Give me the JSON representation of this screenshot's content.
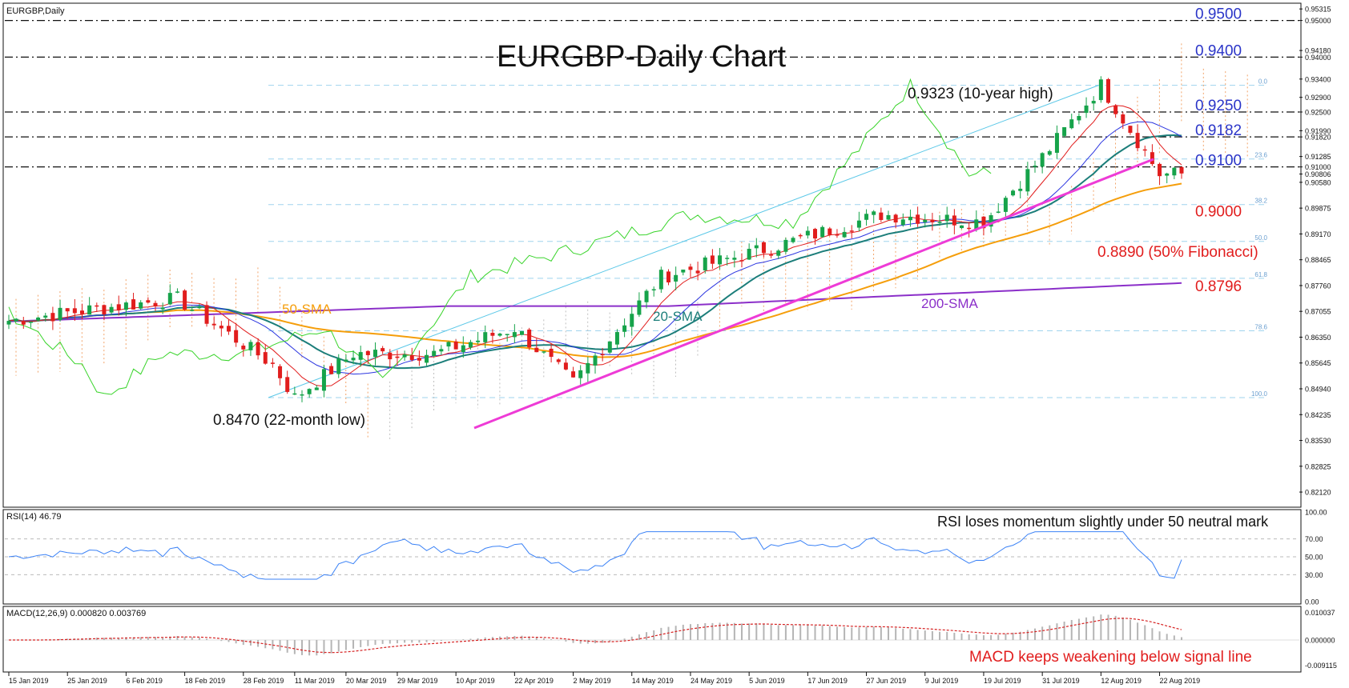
{
  "symbol_label": "EURGBP,Daily",
  "title": "EURGBP-Daily Chart",
  "colors": {
    "bull": "#16a34a",
    "bear": "#e11d1d",
    "sma20": "#1c7e7a",
    "sma50": "#f59e0b",
    "sma200": "#8b2fc9",
    "trend": "#ee3bd6",
    "tenkan": "#e11d1d",
    "kijun": "#2b35e0",
    "chikou": "#38d42a",
    "cloud": "#f2a46a",
    "cloud_gray": "#bfbfbf",
    "channel": "#5bc8e8",
    "rsi": "#3b82f6",
    "macd_hist": "#b5b5b5",
    "macd_signal": "#d62222",
    "label_blue": "#2b35c8",
    "label_red": "#e11d1d"
  },
  "date_axis": [
    "15 Jan 2019",
    "25 Jan 2019",
    "6 Feb 2019",
    "18 Feb 2019",
    "28 Feb 2019",
    "11 Mar 2019",
    "20 Mar 2019",
    "29 Mar 2019",
    "10 Apr 2019",
    "22 Apr 2019",
    "2 May 2019",
    "14 May 2019",
    "24 May 2019",
    "5 Jun 2019",
    "17 Jun 2019",
    "27 Jun 2019",
    "9 Jul 2019",
    "19 Jul 2019",
    "31 Jul 2019",
    "12 Aug 2019",
    "22 Aug 2019"
  ],
  "price_axis": [
    "0.95315",
    "0.95000",
    "0.94180",
    "0.94000",
    "0.93400",
    "0.92900",
    "0.92500",
    "0.91990",
    "0.91820",
    "0.91285",
    "0.91000",
    "0.90806",
    "0.90580",
    "0.89875",
    "0.89170",
    "0.88465",
    "0.87760",
    "0.87055",
    "0.86350",
    "0.85645",
    "0.84940",
    "0.84235",
    "0.83530",
    "0.82825",
    "0.82120"
  ],
  "levels": [
    {
      "price": "0.9500",
      "value": 0.95,
      "color": "#2b35c8"
    },
    {
      "price": "0.9400",
      "value": 0.94,
      "color": "#2b35c8"
    },
    {
      "price": "0.9250",
      "value": 0.925,
      "color": "#2b35c8"
    },
    {
      "price": "0.9182",
      "value": 0.9182,
      "color": "#2b35c8"
    },
    {
      "price": "0.9100",
      "value": 0.91,
      "color": "#2b35c8"
    },
    {
      "price": "0.9000",
      "value": 0.9,
      "color": "#e11d1d"
    },
    {
      "price": "0.8890 (50% Fibonacci)",
      "value": 0.889,
      "color": "#e11d1d"
    },
    {
      "price": "0.8796",
      "value": 0.8796,
      "color": "#e11d1d"
    }
  ],
  "fib_labels": [
    "0.0",
    "23.6",
    "38.2",
    "50.0",
    "61.8",
    "78.6",
    "100.0"
  ],
  "annotations": {
    "high": "0.9323 (10-year high)",
    "low": "0.8470 (22-month low)",
    "sma50": "50-SMA",
    "sma20": "20-SMA",
    "sma200": "200-SMA"
  },
  "rsi": {
    "header": "RSI(14) 46.79",
    "note": "RSI loses momentum slightly under 50 neutral mark",
    "axis": [
      "100.00",
      "70.00",
      "50.00",
      "30.00",
      "0.00"
    ]
  },
  "macd": {
    "header": "MACD(12,26,9) 0.000820 0.003769",
    "note": "MACD keeps weakening below signal line",
    "axis": [
      "0.010037",
      "0.000000",
      "-0.009115"
    ]
  },
  "chart_data": {
    "type": "candlestick",
    "title": "EURGBP-Daily Chart",
    "symbol": "EURGBP, Daily",
    "x_range": [
      "2019-01-15",
      "2019-08-27"
    ],
    "ylim": [
      0.8175,
      0.9545
    ],
    "anchors": [
      {
        "date": "2019-01-15",
        "close": 0.868
      },
      {
        "date": "2019-01-30",
        "close": 0.871
      },
      {
        "date": "2019-02-15",
        "close": 0.874
      },
      {
        "date": "2019-03-06",
        "close": 0.856
      },
      {
        "date": "2019-03-11",
        "close": 0.847
      },
      {
        "date": "2019-03-21",
        "close": 0.859
      },
      {
        "date": "2019-04-05",
        "close": 0.859
      },
      {
        "date": "2019-04-22",
        "close": 0.866
      },
      {
        "date": "2019-05-02",
        "close": 0.851
      },
      {
        "date": "2019-05-20",
        "close": 0.88
      },
      {
        "date": "2019-06-10",
        "close": 0.888
      },
      {
        "date": "2019-07-01",
        "close": 0.897
      },
      {
        "date": "2019-07-19",
        "close": 0.895
      },
      {
        "date": "2019-08-01",
        "close": 0.915
      },
      {
        "date": "2019-08-12",
        "close": 0.9323
      },
      {
        "date": "2019-08-22",
        "close": 0.908
      },
      {
        "date": "2019-08-27",
        "close": 0.9081
      }
    ],
    "key_levels": [
      "0.9500",
      "0.9400",
      "0.9250",
      "0.9182",
      "0.9100",
      "0.9000",
      "0.8890",
      "0.8796"
    ],
    "indicators": [
      "20-SMA",
      "50-SMA",
      "200-SMA",
      "Ichimoku",
      "Fibonacci retracement",
      "RSI(14)",
      "MACD(12,26,9)"
    ],
    "rsi_last": 46.79,
    "macd_last": [
      0.00082,
      0.003769
    ]
  }
}
